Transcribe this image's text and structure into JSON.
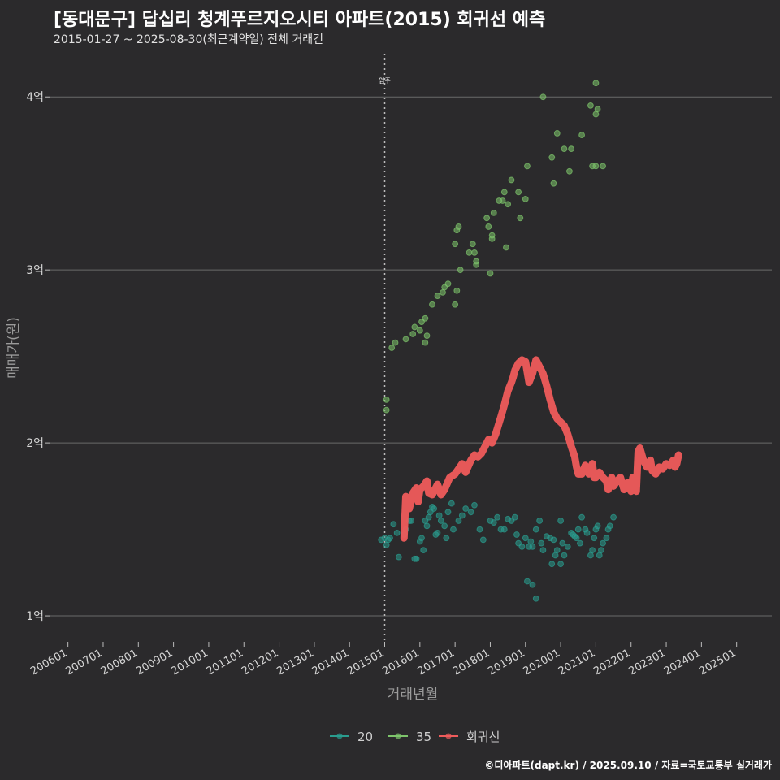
{
  "header": {
    "title": "[동대문구] 답십리 청계푸르지오시티 아파트(2015) 회귀선 예측",
    "subtitle": "2015-01-27 ~ 2025-08-30(최근계약일) 전체 거래건"
  },
  "footer": {
    "credit": "©디아파트(dapt.kr) / 2025.09.10 / 자료=국토교통부 실거래가"
  },
  "colors": {
    "background": "#2b2a2c",
    "s20": "#2a9d8f",
    "s35": "#7dc46b",
    "regression": "#ef5b5b",
    "grid": "#6a6a6a"
  },
  "chart_data": {
    "type": "scatter",
    "title": "[동대문구] 답십리 청계푸르지오시티 아파트(2015) 회귀선 예측",
    "xlabel": "거래년월",
    "ylabel": "매매가(원)",
    "x_range": [
      2005.5,
      2026.0
    ],
    "ylim": [
      0.85,
      4.25
    ],
    "x_ticks": [
      {
        "label": "200601",
        "x": 2006.0
      },
      {
        "label": "200701",
        "x": 2007.0
      },
      {
        "label": "200801",
        "x": 2008.0
      },
      {
        "label": "200901",
        "x": 2009.0
      },
      {
        "label": "201001",
        "x": 2010.0
      },
      {
        "label": "201101",
        "x": 2011.0
      },
      {
        "label": "201201",
        "x": 2012.0
      },
      {
        "label": "201301",
        "x": 2013.0
      },
      {
        "label": "201401",
        "x": 2014.0
      },
      {
        "label": "201501",
        "x": 2015.0
      },
      {
        "label": "201601",
        "x": 2016.0
      },
      {
        "label": "201701",
        "x": 2017.0
      },
      {
        "label": "201801",
        "x": 2018.0
      },
      {
        "label": "201901",
        "x": 2019.0
      },
      {
        "label": "202001",
        "x": 2020.0
      },
      {
        "label": "202101",
        "x": 2021.0
      },
      {
        "label": "202201",
        "x": 2022.0
      },
      {
        "label": "202301",
        "x": 2023.0
      },
      {
        "label": "202401",
        "x": 2024.0
      },
      {
        "label": "202501",
        "x": 2025.0
      }
    ],
    "y_ticks": [
      {
        "label": "1억",
        "value": 1
      },
      {
        "label": "2억",
        "value": 2
      },
      {
        "label": "3억",
        "value": 3
      },
      {
        "label": "4억",
        "value": 4
      }
    ],
    "annotation": {
      "label": "입주",
      "x": 2015.0
    },
    "legend": {
      "position": "bottom",
      "items": [
        {
          "name": "20",
          "series": "s20"
        },
        {
          "name": "35",
          "series": "s35"
        },
        {
          "name": "회귀선",
          "series": "regression"
        }
      ]
    },
    "series": [
      {
        "name": "35",
        "color": "#7dc46b",
        "points": [
          [
            2015.05,
            2.25
          ],
          [
            2015.05,
            2.19
          ],
          [
            2015.2,
            2.55
          ],
          [
            2015.3,
            2.58
          ],
          [
            2015.6,
            2.6
          ],
          [
            2015.8,
            2.63
          ],
          [
            2015.85,
            2.67
          ],
          [
            2016.0,
            2.65
          ],
          [
            2016.05,
            2.7
          ],
          [
            2016.15,
            2.72
          ],
          [
            2016.2,
            2.62
          ],
          [
            2016.15,
            2.58
          ],
          [
            2016.35,
            2.8
          ],
          [
            2016.5,
            2.85
          ],
          [
            2016.65,
            2.87
          ],
          [
            2016.7,
            2.9
          ],
          [
            2016.8,
            2.92
          ],
          [
            2017.0,
            3.15
          ],
          [
            2017.05,
            3.23
          ],
          [
            2017.1,
            3.25
          ],
          [
            2017.15,
            3.0
          ],
          [
            2017.05,
            2.88
          ],
          [
            2017.0,
            2.8
          ],
          [
            2017.4,
            3.1
          ],
          [
            2017.5,
            3.15
          ],
          [
            2017.55,
            3.1
          ],
          [
            2017.6,
            3.05
          ],
          [
            2017.6,
            3.03
          ],
          [
            2017.9,
            3.3
          ],
          [
            2017.95,
            3.25
          ],
          [
            2018.0,
            2.98
          ],
          [
            2018.05,
            3.2
          ],
          [
            2018.05,
            3.18
          ],
          [
            2018.1,
            3.33
          ],
          [
            2018.25,
            3.4
          ],
          [
            2018.35,
            3.4
          ],
          [
            2018.4,
            3.45
          ],
          [
            2018.45,
            3.13
          ],
          [
            2018.5,
            3.38
          ],
          [
            2018.6,
            3.52
          ],
          [
            2018.8,
            3.45
          ],
          [
            2018.85,
            3.3
          ],
          [
            2019.0,
            3.41
          ],
          [
            2019.05,
            3.6
          ],
          [
            2019.5,
            4.0
          ],
          [
            2019.75,
            3.65
          ],
          [
            2019.8,
            3.5
          ],
          [
            2019.9,
            3.79
          ],
          [
            2020.1,
            3.7
          ],
          [
            2020.3,
            3.7
          ],
          [
            2020.25,
            3.57
          ],
          [
            2020.6,
            3.78
          ],
          [
            2020.85,
            3.95
          ],
          [
            2020.9,
            3.6
          ],
          [
            2021.0,
            3.6
          ],
          [
            2021.0,
            3.9
          ],
          [
            2021.05,
            3.93
          ],
          [
            2021.0,
            4.08
          ],
          [
            2021.2,
            3.6
          ]
        ]
      },
      {
        "name": "20",
        "color": "#2a9d8f",
        "points": [
          [
            2014.9,
            1.44
          ],
          [
            2015.0,
            1.45
          ],
          [
            2015.05,
            1.41
          ],
          [
            2015.1,
            1.44
          ],
          [
            2015.15,
            1.45
          ],
          [
            2015.25,
            1.53
          ],
          [
            2015.35,
            1.48
          ],
          [
            2015.4,
            1.34
          ],
          [
            2015.55,
            1.47
          ],
          [
            2015.6,
            1.5
          ],
          [
            2015.7,
            1.55
          ],
          [
            2015.75,
            1.55
          ],
          [
            2015.85,
            1.33
          ],
          [
            2015.9,
            1.33
          ],
          [
            2016.0,
            1.43
          ],
          [
            2016.05,
            1.45
          ],
          [
            2016.1,
            1.38
          ],
          [
            2016.15,
            1.55
          ],
          [
            2016.2,
            1.52
          ],
          [
            2016.25,
            1.57
          ],
          [
            2016.3,
            1.6
          ],
          [
            2016.35,
            1.63
          ],
          [
            2016.4,
            1.62
          ],
          [
            2016.45,
            1.47
          ],
          [
            2016.5,
            1.48
          ],
          [
            2016.55,
            1.58
          ],
          [
            2016.6,
            1.55
          ],
          [
            2016.7,
            1.52
          ],
          [
            2016.75,
            1.45
          ],
          [
            2016.8,
            1.6
          ],
          [
            2016.9,
            1.65
          ],
          [
            2016.95,
            1.5
          ],
          [
            2017.1,
            1.55
          ],
          [
            2017.2,
            1.58
          ],
          [
            2017.3,
            1.62
          ],
          [
            2017.45,
            1.6
          ],
          [
            2017.55,
            1.64
          ],
          [
            2017.7,
            1.5
          ],
          [
            2017.8,
            1.44
          ],
          [
            2018.0,
            1.55
          ],
          [
            2018.1,
            1.54
          ],
          [
            2018.2,
            1.57
          ],
          [
            2018.3,
            1.5
          ],
          [
            2018.4,
            1.5
          ],
          [
            2018.5,
            1.56
          ],
          [
            2018.6,
            1.55
          ],
          [
            2018.7,
            1.57
          ],
          [
            2018.75,
            1.47
          ],
          [
            2018.8,
            1.42
          ],
          [
            2018.9,
            1.4
          ],
          [
            2019.0,
            1.45
          ],
          [
            2019.05,
            1.2
          ],
          [
            2019.1,
            1.4
          ],
          [
            2019.15,
            1.43
          ],
          [
            2019.2,
            1.4
          ],
          [
            2019.3,
            1.5
          ],
          [
            2019.4,
            1.55
          ],
          [
            2019.45,
            1.42
          ],
          [
            2019.5,
            1.38
          ],
          [
            2019.6,
            1.46
          ],
          [
            2019.7,
            1.45
          ],
          [
            2019.75,
            1.3
          ],
          [
            2019.8,
            1.44
          ],
          [
            2019.85,
            1.35
          ],
          [
            2019.9,
            1.38
          ],
          [
            2020.0,
            1.55
          ],
          [
            2020.05,
            1.42
          ],
          [
            2020.1,
            1.35
          ],
          [
            2020.2,
            1.4
          ],
          [
            2020.3,
            1.48
          ],
          [
            2020.35,
            1.47
          ],
          [
            2020.4,
            1.46
          ],
          [
            2020.45,
            1.45
          ],
          [
            2020.5,
            1.5
          ],
          [
            2020.55,
            1.42
          ],
          [
            2020.6,
            1.57
          ],
          [
            2020.7,
            1.5
          ],
          [
            2020.75,
            1.48
          ],
          [
            2020.85,
            1.35
          ],
          [
            2020.9,
            1.38
          ],
          [
            2020.95,
            1.45
          ],
          [
            2021.0,
            1.5
          ],
          [
            2021.05,
            1.52
          ],
          [
            2021.1,
            1.35
          ],
          [
            2021.15,
            1.38
          ],
          [
            2021.2,
            1.42
          ],
          [
            2021.3,
            1.45
          ],
          [
            2021.35,
            1.5
          ],
          [
            2021.4,
            1.52
          ],
          [
            2021.5,
            1.57
          ],
          [
            2020.0,
            1.3
          ],
          [
            2019.2,
            1.18
          ],
          [
            2019.3,
            1.1
          ]
        ]
      }
    ],
    "regression": [
      [
        2015.55,
        1.45
      ],
      [
        2015.6,
        1.69
      ],
      [
        2015.7,
        1.62
      ],
      [
        2015.8,
        1.71
      ],
      [
        2015.9,
        1.74
      ],
      [
        2015.95,
        1.66
      ],
      [
        2016.0,
        1.73
      ],
      [
        2016.1,
        1.75
      ],
      [
        2016.2,
        1.78
      ],
      [
        2016.25,
        1.71
      ],
      [
        2016.35,
        1.7
      ],
      [
        2016.5,
        1.76
      ],
      [
        2016.6,
        1.7
      ],
      [
        2016.7,
        1.73
      ],
      [
        2016.85,
        1.8
      ],
      [
        2017.0,
        1.82
      ],
      [
        2017.1,
        1.85
      ],
      [
        2017.2,
        1.88
      ],
      [
        2017.3,
        1.83
      ],
      [
        2017.45,
        1.9
      ],
      [
        2017.55,
        1.93
      ],
      [
        2017.65,
        1.92
      ],
      [
        2017.75,
        1.94
      ],
      [
        2017.85,
        1.98
      ],
      [
        2017.95,
        2.02
      ],
      [
        2018.05,
        2.0
      ],
      [
        2018.15,
        2.05
      ],
      [
        2018.3,
        2.15
      ],
      [
        2018.4,
        2.22
      ],
      [
        2018.5,
        2.3
      ],
      [
        2018.6,
        2.35
      ],
      [
        2018.65,
        2.38
      ],
      [
        2018.7,
        2.42
      ],
      [
        2018.8,
        2.46
      ],
      [
        2018.9,
        2.48
      ],
      [
        2019.0,
        2.47
      ],
      [
        2019.1,
        2.35
      ],
      [
        2019.2,
        2.4
      ],
      [
        2019.3,
        2.48
      ],
      [
        2019.4,
        2.44
      ],
      [
        2019.5,
        2.4
      ],
      [
        2019.6,
        2.33
      ],
      [
        2019.7,
        2.25
      ],
      [
        2019.8,
        2.18
      ],
      [
        2019.9,
        2.14
      ],
      [
        2020.0,
        2.12
      ],
      [
        2020.1,
        2.1
      ],
      [
        2020.2,
        2.05
      ],
      [
        2020.3,
        1.98
      ],
      [
        2020.4,
        1.92
      ],
      [
        2020.45,
        1.86
      ],
      [
        2020.5,
        1.82
      ],
      [
        2020.6,
        1.82
      ],
      [
        2020.7,
        1.87
      ],
      [
        2020.8,
        1.82
      ],
      [
        2020.9,
        1.88
      ],
      [
        2020.95,
        1.8
      ],
      [
        2021.0,
        1.8
      ],
      [
        2021.1,
        1.83
      ],
      [
        2021.2,
        1.8
      ],
      [
        2021.3,
        1.78
      ],
      [
        2021.35,
        1.73
      ],
      [
        2021.45,
        1.8
      ],
      [
        2021.5,
        1.75
      ],
      [
        2021.6,
        1.78
      ],
      [
        2021.7,
        1.8
      ],
      [
        2021.8,
        1.73
      ],
      [
        2021.9,
        1.77
      ],
      [
        2022.0,
        1.72
      ],
      [
        2022.05,
        1.8
      ],
      [
        2022.1,
        1.75
      ],
      [
        2022.15,
        1.72
      ],
      [
        2022.2,
        1.95
      ],
      [
        2022.25,
        1.97
      ],
      [
        2022.35,
        1.9
      ],
      [
        2022.45,
        1.86
      ],
      [
        2022.55,
        1.9
      ],
      [
        2022.6,
        1.84
      ],
      [
        2022.7,
        1.82
      ],
      [
        2022.8,
        1.86
      ],
      [
        2022.9,
        1.85
      ],
      [
        2023.0,
        1.88
      ],
      [
        2023.1,
        1.87
      ],
      [
        2023.2,
        1.9
      ],
      [
        2023.25,
        1.86
      ],
      [
        2023.3,
        1.88
      ],
      [
        2023.35,
        1.93
      ]
    ]
  }
}
